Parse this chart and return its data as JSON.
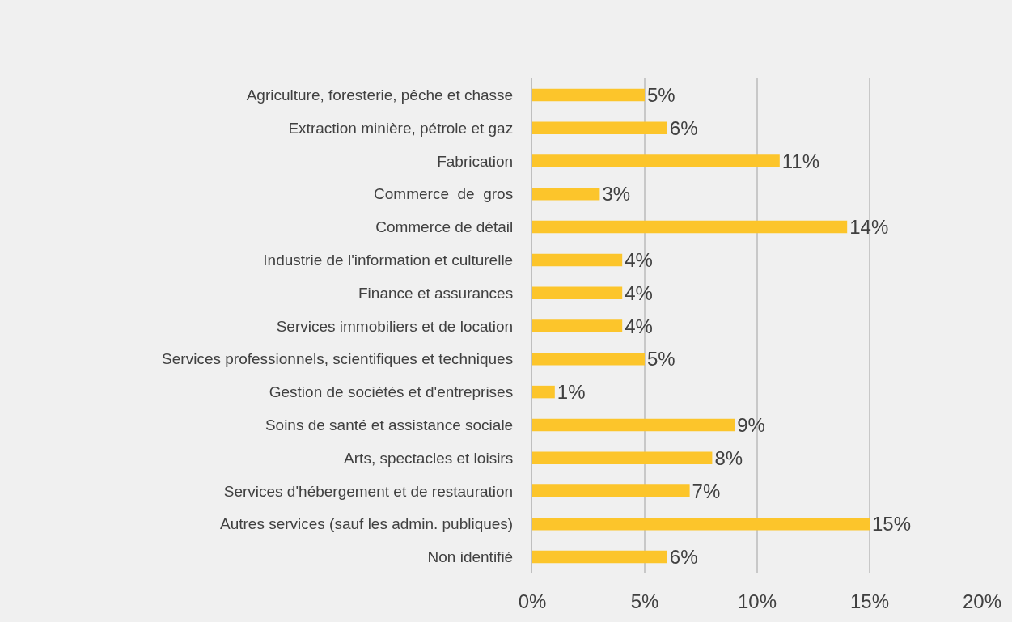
{
  "chart_data": {
    "type": "bar",
    "orientation": "horizontal",
    "categories": [
      "Agriculture, foresterie, pêche et chasse",
      "Extraction minière, pétrole et gaz",
      "Fabrication",
      "Commerce  de  gros",
      "Commerce de détail",
      "Industrie de l'information et culturelle",
      "Finance et assurances",
      "Services immobiliers et de location",
      "Services professionnels, scientifiques et techniques",
      "Gestion de sociétés et d'entreprises",
      "Soins de santé et assistance sociale",
      "Arts, spectacles et loisirs",
      "Services d'hébergement et de restauration",
      "Autres services (sauf les admin. publiques)",
      "Non identifié"
    ],
    "values": [
      5,
      6,
      11,
      3,
      14,
      4,
      4,
      4,
      5,
      1,
      9,
      8,
      7,
      15,
      6
    ],
    "color": "#fcc52b",
    "value_labels": [
      "5%",
      "6%",
      "11%",
      "3%",
      "14%",
      "4%",
      "4%",
      "4%",
      "5%",
      "1%",
      "9%",
      "8%",
      "7%",
      "15%",
      "6%"
    ],
    "xlim": [
      0,
      20
    ],
    "xticks": [
      {
        "value": 0,
        "label": "0%"
      },
      {
        "value": 5,
        "label": "5%"
      },
      {
        "value": 10,
        "label": "10%"
      },
      {
        "value": 15,
        "label": "15%"
      },
      {
        "value": 20,
        "label": "20%"
      }
    ],
    "grid": "x"
  }
}
